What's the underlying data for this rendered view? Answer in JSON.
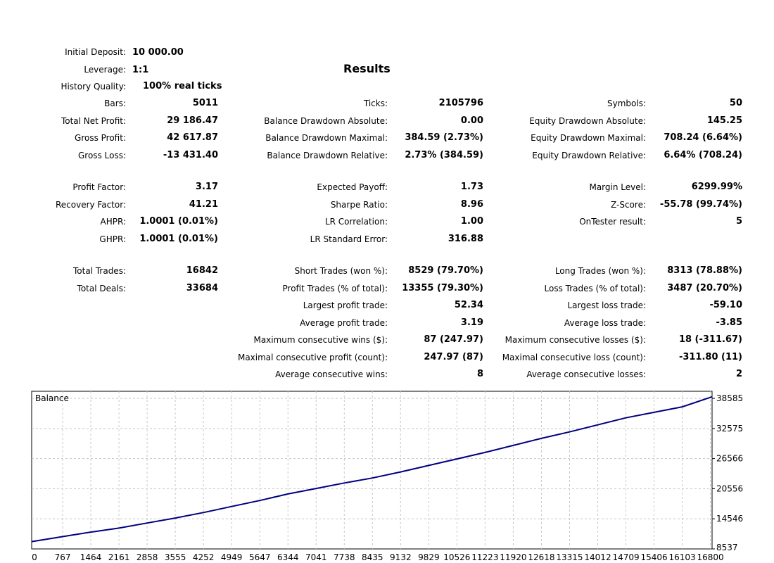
{
  "report": {
    "title": "Results",
    "header": {
      "initial_deposit": {
        "label": "Initial Deposit:",
        "value": "10 000.00"
      },
      "leverage": {
        "label": "Leverage:",
        "value": "1:1"
      },
      "history_quality": {
        "label": "History Quality:",
        "value": "100% real ticks"
      }
    },
    "col1": [
      {
        "label": "Bars:",
        "value": "5011"
      },
      {
        "label": "Total Net Profit:",
        "value": "29 186.47"
      },
      {
        "label": "Gross Profit:",
        "value": "42 617.87"
      },
      {
        "label": "Gross Loss:",
        "value": "-13 431.40"
      },
      {
        "label": "Profit Factor:",
        "value": "3.17"
      },
      {
        "label": "Recovery Factor:",
        "value": "41.21"
      },
      {
        "label": "AHPR:",
        "value": "1.0001 (0.01%)"
      },
      {
        "label": "GHPR:",
        "value": "1.0001 (0.01%)"
      },
      {
        "label": "Total Trades:",
        "value": "16842"
      },
      {
        "label": "Total Deals:",
        "value": "33684"
      }
    ],
    "col2": [
      {
        "label": "Ticks:",
        "value": "2105796"
      },
      {
        "label": "Balance Drawdown Absolute:",
        "value": "0.00"
      },
      {
        "label": "Balance Drawdown Maximal:",
        "value": "384.59 (2.73%)"
      },
      {
        "label": "Balance Drawdown Relative:",
        "value": "2.73% (384.59)"
      },
      {
        "label": "Expected Payoff:",
        "value": "1.73"
      },
      {
        "label": "Sharpe Ratio:",
        "value": "8.96"
      },
      {
        "label": "LR Correlation:",
        "value": "1.00"
      },
      {
        "label": "LR Standard Error:",
        "value": "316.88"
      },
      {
        "label": "Short Trades (won %):",
        "value": "8529 (79.70%)"
      },
      {
        "label": "Profit Trades (% of total):",
        "value": "13355 (79.30%)"
      },
      {
        "label": "Largest profit trade:",
        "value": "52.34"
      },
      {
        "label": "Average profit trade:",
        "value": "3.19"
      },
      {
        "label": "Maximum consecutive wins ($):",
        "value": "87 (247.97)"
      },
      {
        "label": "Maximal consecutive profit (count):",
        "value": "247.97 (87)"
      },
      {
        "label": "Average consecutive wins:",
        "value": "8"
      }
    ],
    "col3": [
      {
        "label": "Symbols:",
        "value": "50"
      },
      {
        "label": "Equity Drawdown Absolute:",
        "value": "145.25"
      },
      {
        "label": "Equity Drawdown Maximal:",
        "value": "708.24 (6.64%)"
      },
      {
        "label": "Equity Drawdown Relative:",
        "value": "6.64% (708.24)"
      },
      {
        "label": "Margin Level:",
        "value": "6299.99%"
      },
      {
        "label": "Z-Score:",
        "value": "-55.78 (99.74%)"
      },
      {
        "label": "OnTester result:",
        "value": "5"
      },
      {
        "label": "Long Trades (won %):",
        "value": "8313 (78.88%)"
      },
      {
        "label": "Loss Trades (% of total):",
        "value": "3487 (20.70%)"
      },
      {
        "label": "Largest loss trade:",
        "value": "-59.10"
      },
      {
        "label": "Average loss trade:",
        "value": "-3.85"
      },
      {
        "label": "Maximum consecutive losses ($):",
        "value": "18 (-311.67)"
      },
      {
        "label": "Maximal consecutive loss (count):",
        "value": "-311.80 (11)"
      },
      {
        "label": "Average consecutive losses:",
        "value": "2"
      }
    ]
  },
  "chart_data": {
    "type": "line",
    "title": "Balance",
    "xlabel": "",
    "ylabel": "",
    "x_ticks": [
      "0",
      "767",
      "1464",
      "2161",
      "2858",
      "3555",
      "4252",
      "4949",
      "5647",
      "6344",
      "7041",
      "7738",
      "8435",
      "9132",
      "9829",
      "10526",
      "11223",
      "11920",
      "12618",
      "13315",
      "14012",
      "14709",
      "15406",
      "16103",
      "16800"
    ],
    "y_ticks": [
      "8537",
      "14546",
      "20556",
      "26566",
      "32575",
      "38585"
    ],
    "xlim": [
      0,
      16842
    ],
    "ylim": [
      8537,
      40000
    ],
    "grid": true,
    "line_color": "#000080",
    "series": [
      {
        "x": [
          0,
          767,
          1464,
          2161,
          2858,
          3555,
          4252,
          4949,
          5647,
          6344,
          7041,
          7738,
          8435,
          9132,
          9829,
          10526,
          11223,
          11920,
          12618,
          13315,
          14012,
          14709,
          15406,
          16103,
          16842
        ],
        "values": [
          10000,
          11000,
          11900,
          12700,
          13700,
          14700,
          15800,
          17000,
          18200,
          19500,
          20600,
          21700,
          22700,
          23900,
          25200,
          26500,
          27800,
          29200,
          30600,
          31900,
          33300,
          34700,
          35800,
          36900,
          38900
        ]
      }
    ]
  }
}
